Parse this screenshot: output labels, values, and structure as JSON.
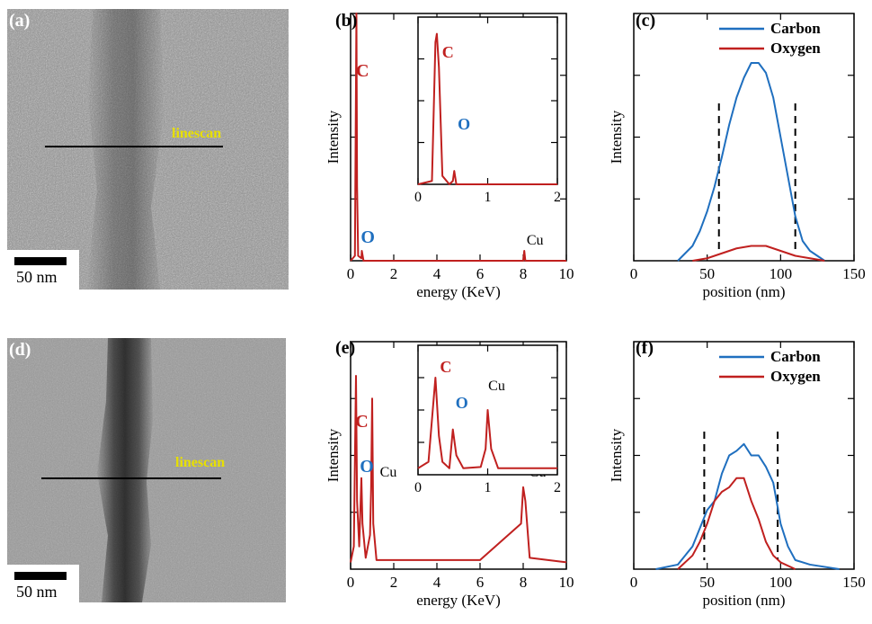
{
  "panels": {
    "a": {
      "label": "(a)",
      "scale_bar": "50 nm",
      "linescan": "linescan"
    },
    "b": {
      "label": "(b)"
    },
    "c": {
      "label": "(c)"
    },
    "d": {
      "label": "(d)",
      "scale_bar": "50 nm",
      "linescan": "linescan"
    },
    "e": {
      "label": "(e)"
    },
    "f": {
      "label": "(f)"
    }
  },
  "colors": {
    "carbon_eds": "#c0201f",
    "carbon_line": "#1f6fbf",
    "oxygen_line": "#c0201f",
    "oxygen_marker": "#1f6fbf"
  },
  "chart_data": [
    {
      "id": "b",
      "type": "line",
      "xlabel": "energy (KeV)",
      "ylabel": "Intensity",
      "xlim": [
        0,
        10
      ],
      "xticks": [
        0,
        2,
        4,
        6,
        8,
        10
      ],
      "series": [
        {
          "x": [
            0,
            0.2,
            0.27,
            0.3,
            0.35,
            0.5,
            0.52,
            0.6,
            1,
            2,
            4,
            5,
            6,
            8,
            8.05,
            8.1,
            10
          ],
          "y": [
            0,
            0.02,
            1.0,
            0.3,
            0.02,
            0.01,
            0.04,
            0.0,
            0.0,
            0.0,
            0.0,
            0.0,
            0.0,
            0.0,
            0.04,
            0.0,
            0.0
          ]
        }
      ],
      "annotations": [
        {
          "text": "C",
          "x": 0.3
        },
        {
          "text": "O",
          "x": 0.55
        },
        {
          "text": "Cu",
          "x": 8.05
        }
      ],
      "inset": {
        "xlim": [
          0,
          2
        ],
        "xticks": [
          0,
          1,
          2
        ],
        "series": [
          {
            "x": [
              0,
              0.2,
              0.25,
              0.27,
              0.3,
              0.35,
              0.45,
              0.5,
              0.52,
              0.55,
              0.6,
              1,
              2
            ],
            "y": [
              0,
              0.02,
              0.85,
              0.9,
              0.7,
              0.05,
              0.0,
              0.02,
              0.08,
              0.0,
              0.0,
              0.0,
              0.0
            ]
          }
        ],
        "annotations": [
          {
            "text": "C",
            "x": 0.3
          },
          {
            "text": "O",
            "x": 0.53
          }
        ]
      }
    },
    {
      "id": "c",
      "type": "line",
      "xlabel": "position (nm)",
      "ylabel": "Intensity",
      "xlim": [
        0,
        150
      ],
      "xticks": [
        0,
        50,
        100,
        150
      ],
      "legend": [
        "Carbon",
        "Oxygen"
      ],
      "dashed_lines": [
        58,
        110
      ],
      "series": [
        {
          "name": "Carbon",
          "x": [
            30,
            35,
            40,
            45,
            50,
            55,
            60,
            65,
            70,
            75,
            80,
            85,
            90,
            95,
            100,
            105,
            110,
            115,
            120,
            125,
            130
          ],
          "y": [
            0.0,
            0.03,
            0.06,
            0.12,
            0.2,
            0.3,
            0.42,
            0.55,
            0.66,
            0.74,
            0.8,
            0.8,
            0.76,
            0.66,
            0.5,
            0.34,
            0.18,
            0.08,
            0.04,
            0.02,
            0.0
          ]
        },
        {
          "name": "Oxygen",
          "x": [
            40,
            50,
            60,
            70,
            80,
            90,
            100,
            110,
            120,
            130
          ],
          "y": [
            0.0,
            0.01,
            0.03,
            0.05,
            0.06,
            0.06,
            0.04,
            0.02,
            0.01,
            0.0
          ]
        }
      ]
    },
    {
      "id": "e",
      "type": "line",
      "xlabel": "energy (KeV)",
      "ylabel": "Intensity",
      "xlim": [
        0,
        10
      ],
      "xticks": [
        0,
        2,
        4,
        6,
        8,
        10
      ],
      "series": [
        {
          "x": [
            0,
            0.15,
            0.25,
            0.3,
            0.4,
            0.5,
            0.55,
            0.7,
            0.9,
            0.95,
            1.0,
            1.05,
            1.2,
            2,
            4,
            6,
            7.9,
            8.0,
            8.1,
            8.3,
            10
          ],
          "y": [
            0.03,
            0.1,
            0.85,
            0.3,
            0.1,
            0.4,
            0.2,
            0.05,
            0.15,
            0.35,
            0.75,
            0.2,
            0.04,
            0.04,
            0.04,
            0.04,
            0.2,
            0.36,
            0.3,
            0.05,
            0.03
          ]
        }
      ],
      "annotations": [
        {
          "text": "C",
          "x": 0.27
        },
        {
          "text": "O",
          "x": 0.5
        },
        {
          "text": "Cu",
          "x": 1.0
        },
        {
          "text": "Cu",
          "x": 8.0
        }
      ],
      "inset": {
        "xlim": [
          0,
          2
        ],
        "xticks": [
          0,
          1,
          2
        ],
        "series": [
          {
            "x": [
              0,
              0.15,
              0.25,
              0.3,
              0.35,
              0.45,
              0.5,
              0.55,
              0.65,
              0.9,
              0.97,
              1.0,
              1.05,
              1.15,
              1.5,
              2
            ],
            "y": [
              0.05,
              0.1,
              0.75,
              0.3,
              0.1,
              0.05,
              0.35,
              0.15,
              0.05,
              0.06,
              0.2,
              0.5,
              0.2,
              0.05,
              0.05,
              0.05
            ]
          }
        ],
        "annotations": [
          {
            "text": "C",
            "x": 0.27
          },
          {
            "text": "O",
            "x": 0.5
          },
          {
            "text": "Cu",
            "x": 1.0
          }
        ]
      }
    },
    {
      "id": "f",
      "type": "line",
      "xlabel": "position (nm)",
      "ylabel": "Intensity",
      "xlim": [
        0,
        150
      ],
      "xticks": [
        0,
        50,
        100,
        150
      ],
      "legend": [
        "Carbon",
        "Oxygen"
      ],
      "dashed_lines": [
        48,
        98
      ],
      "series": [
        {
          "name": "Carbon",
          "x": [
            15,
            30,
            40,
            45,
            50,
            55,
            60,
            65,
            70,
            75,
            80,
            85,
            90,
            95,
            100,
            105,
            110,
            120,
            140
          ],
          "y": [
            0.0,
            0.02,
            0.1,
            0.18,
            0.26,
            0.3,
            0.42,
            0.5,
            0.52,
            0.55,
            0.5,
            0.5,
            0.45,
            0.38,
            0.2,
            0.1,
            0.04,
            0.02,
            0.0
          ]
        },
        {
          "name": "Oxygen",
          "x": [
            30,
            40,
            45,
            50,
            55,
            60,
            65,
            70,
            75,
            80,
            85,
            90,
            95,
            100,
            110
          ],
          "y": [
            0.0,
            0.06,
            0.12,
            0.2,
            0.3,
            0.34,
            0.36,
            0.4,
            0.4,
            0.3,
            0.22,
            0.12,
            0.06,
            0.03,
            0.0
          ]
        }
      ]
    }
  ]
}
